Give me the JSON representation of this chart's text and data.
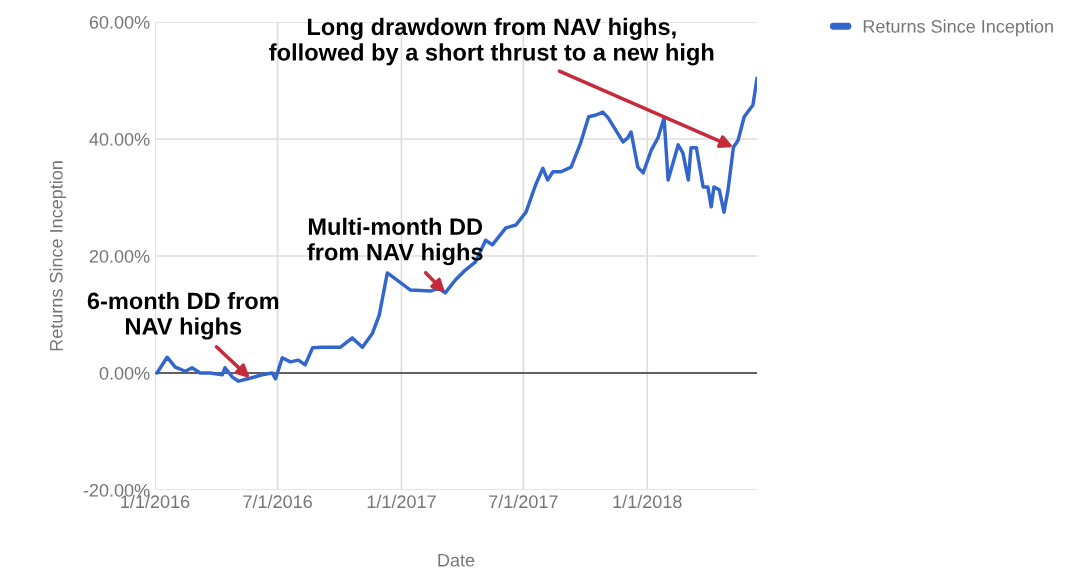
{
  "chart_data": {
    "type": "line",
    "xlabel": "Date",
    "ylabel": "Returns Since Inception",
    "x": [
      "2016-01-04",
      "2016-01-19",
      "2016-01-31",
      "2016-02-15",
      "2016-02-25",
      "2016-03-08",
      "2016-03-23",
      "2016-04-10",
      "2016-04-14",
      "2016-04-25",
      "2016-05-04",
      "2016-05-21",
      "2016-06-08",
      "2016-06-23",
      "2016-06-28",
      "2016-07-08",
      "2016-07-20",
      "2016-08-01",
      "2016-08-11",
      "2016-08-22",
      "2016-09-05",
      "2016-10-02",
      "2016-10-20",
      "2016-11-04",
      "2016-11-19",
      "2016-11-29",
      "2016-12-11",
      "2016-12-31",
      "2017-01-14",
      "2017-02-13",
      "2017-02-25",
      "2017-03-07",
      "2017-03-22",
      "2017-04-06",
      "2017-04-21",
      "2017-05-06",
      "2017-05-16",
      "2017-06-05",
      "2017-06-20",
      "2017-07-05",
      "2017-07-19",
      "2017-07-30",
      "2017-08-06",
      "2017-08-14",
      "2017-08-26",
      "2017-09-10",
      "2017-09-24",
      "2017-10-06",
      "2017-10-17",
      "2017-10-27",
      "2017-11-04",
      "2017-11-26",
      "2017-12-03",
      "2017-12-08",
      "2017-12-18",
      "2017-12-26",
      "2018-01-07",
      "2018-01-17",
      "2018-01-26",
      "2018-02-01",
      "2018-02-16",
      "2018-02-23",
      "2018-03-03",
      "2018-03-07",
      "2018-03-15",
      "2018-03-25",
      "2018-04-01",
      "2018-04-06",
      "2018-04-10",
      "2018-04-18",
      "2018-04-25",
      "2018-05-01",
      "2018-05-09",
      "2018-05-16",
      "2018-05-25",
      "2018-06-07",
      "2018-06-13"
    ],
    "series": [
      {
        "name": "Returns Since Inception",
        "color": "#3366cc",
        "values": [
          0.0,
          2.7,
          1.0,
          0.3,
          0.9,
          0.0,
          0.0,
          -0.3,
          0.9,
          -0.7,
          -1.4,
          -0.9,
          -0.3,
          0.0,
          -1.0,
          2.6,
          1.9,
          2.2,
          1.4,
          4.3,
          4.4,
          4.4,
          6.0,
          4.4,
          6.8,
          9.9,
          17.1,
          15.4,
          14.2,
          14.0,
          14.5,
          13.7,
          15.9,
          17.6,
          19.0,
          22.7,
          21.9,
          24.8,
          25.3,
          27.5,
          32.1,
          35.0,
          33.0,
          34.4,
          34.4,
          35.2,
          39.3,
          43.8,
          44.1,
          44.6,
          43.6,
          39.5,
          40.2,
          41.2,
          35.2,
          34.2,
          38.1,
          40.2,
          43.6,
          33.0,
          39.0,
          37.6,
          33.0,
          38.5,
          38.5,
          31.8,
          31.8,
          28.4,
          31.8,
          31.3,
          27.5,
          31.3,
          38.6,
          39.8,
          43.8,
          45.8,
          50.4
        ]
      }
    ],
    "xlim": [
      "2016-01-01",
      "2018-06-13"
    ],
    "xticks": [
      {
        "value": "2016-01-01",
        "label": "1/1/2016"
      },
      {
        "value": "2016-07-01",
        "label": "7/1/2016"
      },
      {
        "value": "2017-01-01",
        "label": "1/1/2017"
      },
      {
        "value": "2017-07-01",
        "label": "7/1/2017"
      },
      {
        "value": "2018-01-01",
        "label": "1/1/2018"
      }
    ],
    "ylim": [
      -20,
      60
    ],
    "yticks": [
      {
        "value": -20,
        "label": "-20.00%"
      },
      {
        "value": 0,
        "label": "0.00%"
      },
      {
        "value": 20,
        "label": "20.00%"
      },
      {
        "value": 40,
        "label": "40.00%"
      },
      {
        "value": 60,
        "label": "60.00%"
      }
    ],
    "ref_lines": [
      {
        "axis": "y",
        "value": 0,
        "color": "#333333"
      }
    ],
    "grid": true,
    "legend": "top right",
    "marker": "none",
    "line_style": "solid",
    "annotations": [
      {
        "text": "6-month DD from\nNAV highs",
        "x": "2016-05-21",
        "y": -0.9
      },
      {
        "text": "Multi-month DD\nfrom NAV highs",
        "x": "2017-03-07",
        "y": 13.7
      },
      {
        "text": "Long drawdown from NAV highs,\nfollowed by a short thrust to a new high",
        "x": "2018-05-09",
        "y": 38.6
      }
    ]
  }
}
